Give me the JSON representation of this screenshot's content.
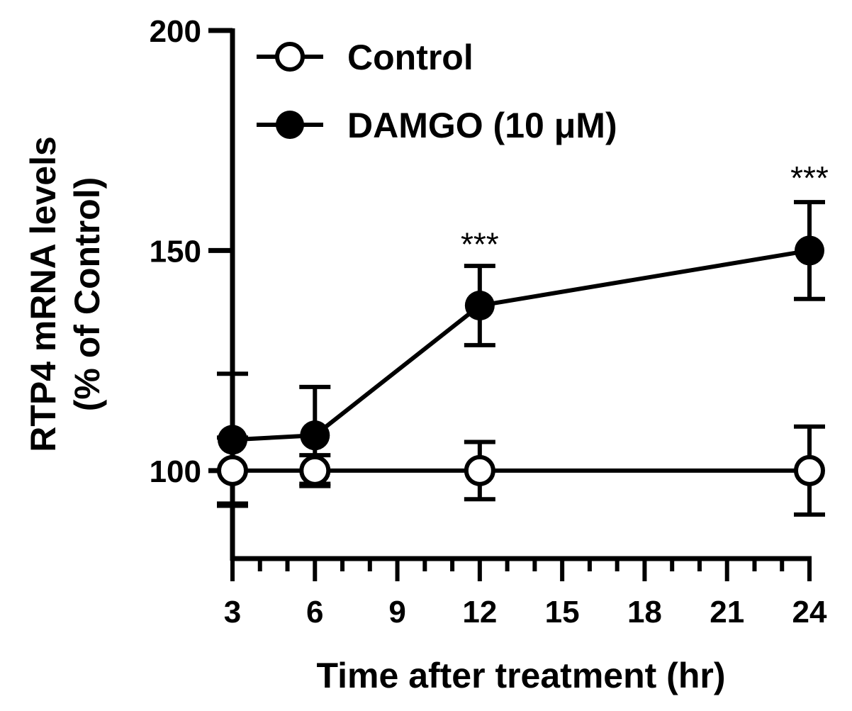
{
  "chart_data": {
    "type": "line",
    "xlabel": "Time after treatment (hr)",
    "ylabel_line1": "RTP4 mRNA levels",
    "ylabel_line2": "(% of Control)",
    "xlim": [
      3,
      24
    ],
    "ylim": [
      80,
      200
    ],
    "x_ticks": [
      3,
      6,
      9,
      12,
      15,
      18,
      21,
      24
    ],
    "y_ticks": [
      100,
      150,
      200
    ],
    "x_minor_step": 1,
    "series": [
      {
        "name": "Control",
        "marker": "open-circle",
        "x": [
          3,
          6,
          12,
          24
        ],
        "values": [
          100,
          100,
          100,
          100
        ],
        "error": [
          7.5,
          3.5,
          6.5,
          10
        ]
      },
      {
        "name": "DAMGO (10 μM)",
        "marker": "filled-circle",
        "x": [
          3,
          6,
          12,
          24
        ],
        "values": [
          107,
          108,
          137.5,
          150
        ],
        "error": [
          15,
          11,
          9,
          11
        ]
      }
    ],
    "annotations": [
      {
        "text": "***",
        "x": 12,
        "y": 146
      },
      {
        "text": "***",
        "x": 24,
        "y": 161
      }
    ],
    "legend_position": "top-left"
  }
}
